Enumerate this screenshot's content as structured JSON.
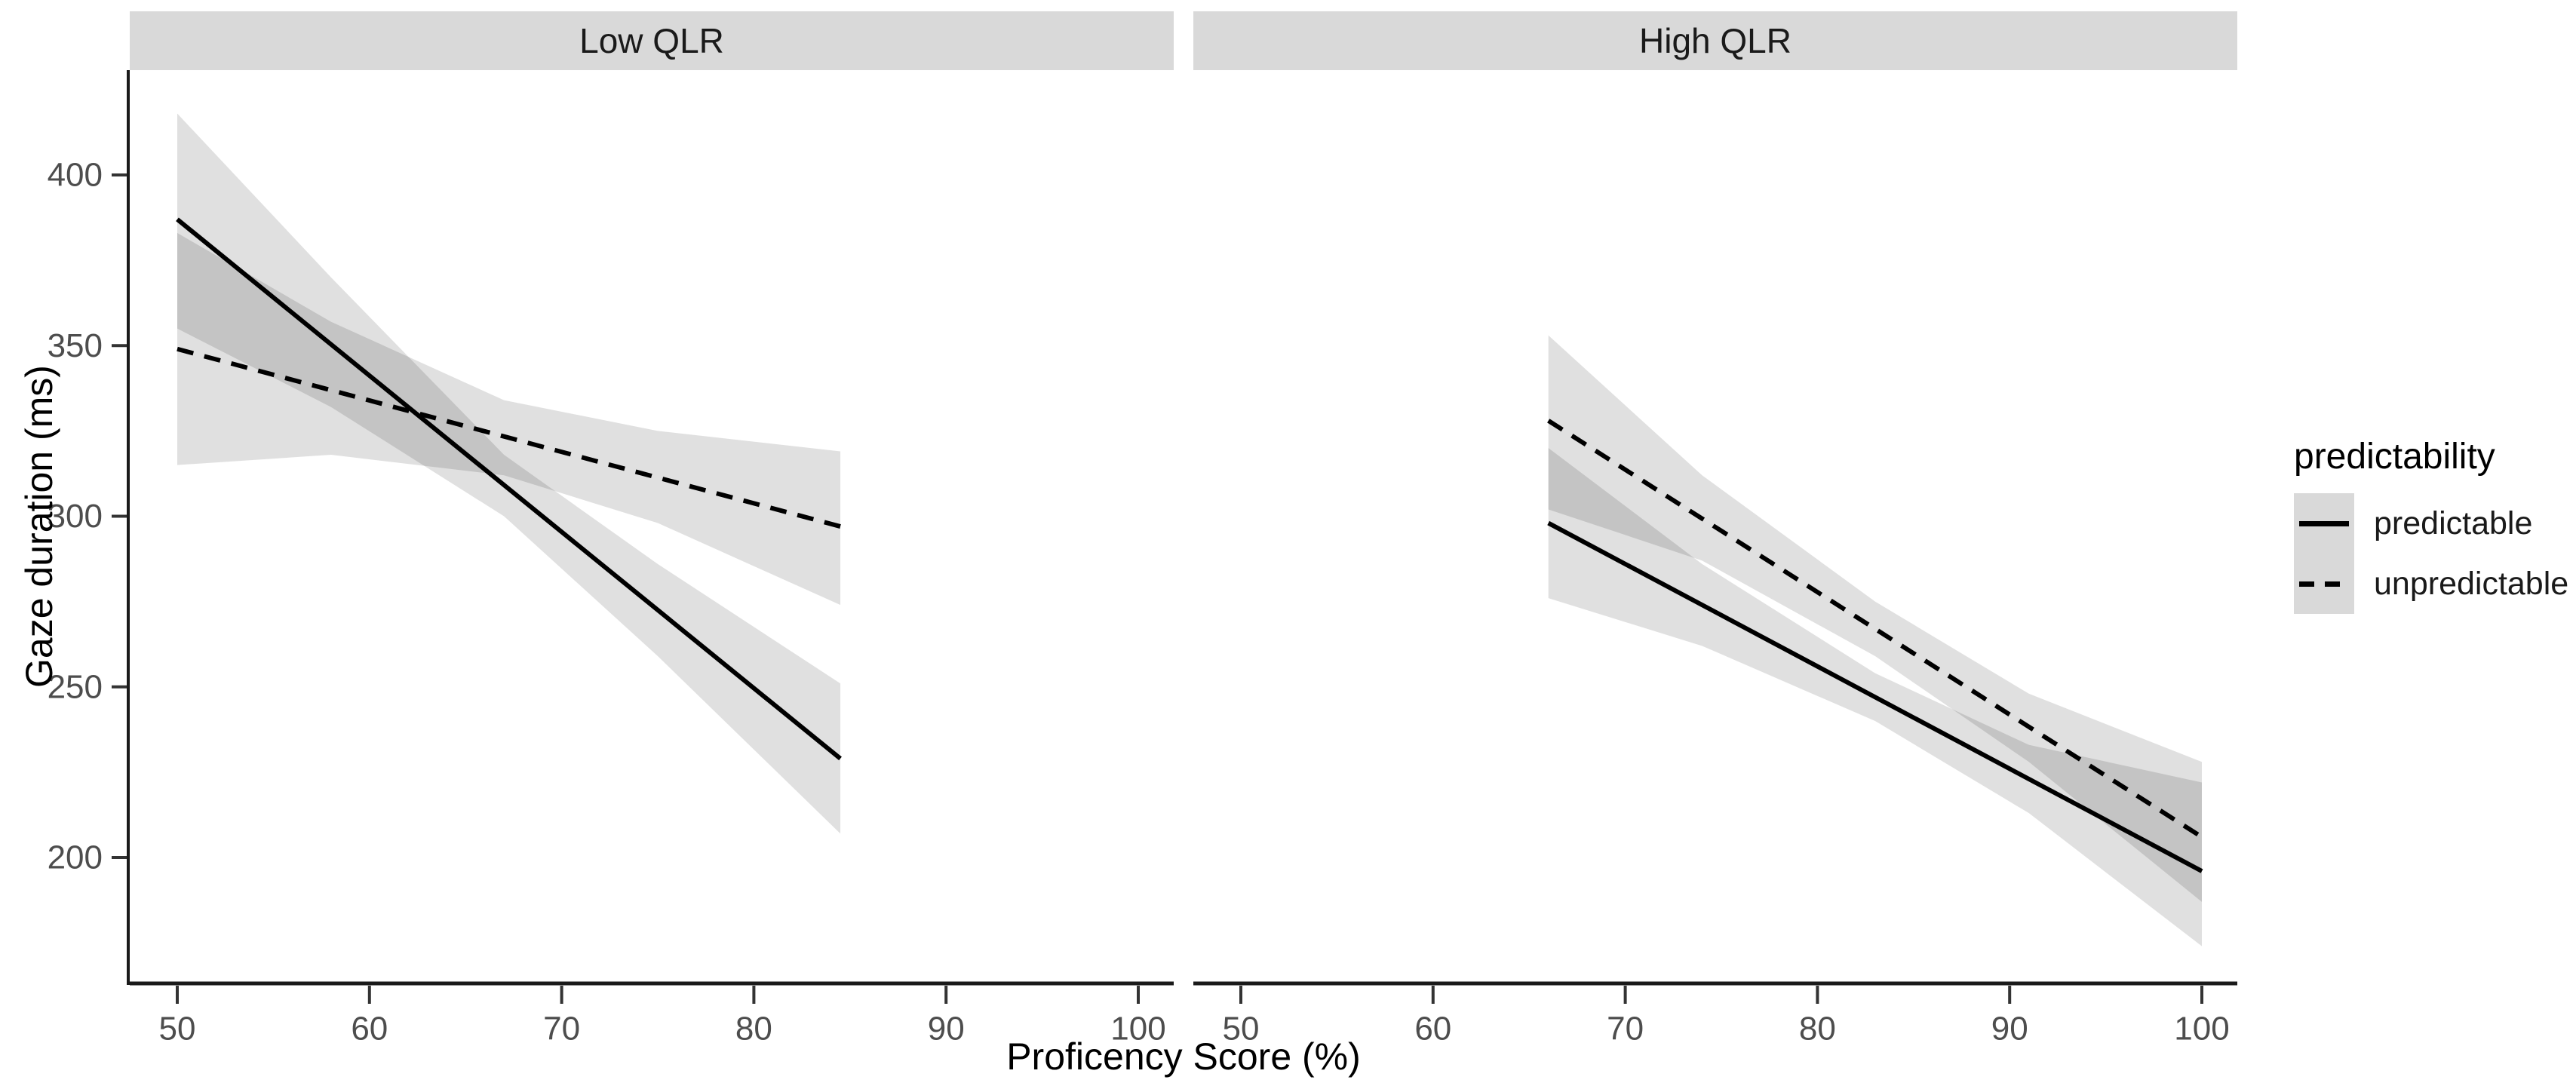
{
  "chart_data": {
    "type": "line",
    "title": "",
    "xlabel": "Proficency Score (%)",
    "ylabel": "Gaze duration (ms)",
    "x_ticks": [
      50,
      60,
      70,
      80,
      90,
      100
    ],
    "y_ticks": [
      200,
      250,
      300,
      350,
      400
    ],
    "x_range": [
      47.5,
      101.8
    ],
    "y_range": [
      163,
      431
    ],
    "grid": false,
    "legend": {
      "title": "predictability",
      "position": "right",
      "entries": [
        {
          "label": "predictable",
          "linetype": "solid"
        },
        {
          "label": "unpredictable",
          "linetype": "dashed"
        }
      ]
    },
    "facets": [
      {
        "label": "Low QLR",
        "series": [
          {
            "name": "predictable",
            "linetype": "solid",
            "x": [
              50,
              84.5
            ],
            "y": [
              387,
              229
            ],
            "ci": {
              "x": [
                50,
                58,
                67,
                75,
                84.5
              ],
              "lower": [
                355,
                332,
                300,
                259,
                207
              ],
              "upper": [
                418,
                370,
                318,
                286,
                251
              ]
            }
          },
          {
            "name": "unpredictable",
            "linetype": "dashed",
            "x": [
              50,
              84.5
            ],
            "y": [
              349,
              297
            ],
            "ci": {
              "x": [
                50,
                58,
                67,
                75,
                84.5
              ],
              "lower": [
                315,
                318,
                312,
                298,
                274
              ],
              "upper": [
                383,
                357,
                334,
                325,
                319
              ]
            }
          }
        ]
      },
      {
        "label": "High QLR",
        "series": [
          {
            "name": "predictable",
            "linetype": "solid",
            "x": [
              66,
              100
            ],
            "y": [
              298,
              196
            ],
            "ci": {
              "x": [
                66,
                74,
                83,
                91,
                100
              ],
              "lower": [
                276,
                262,
                240,
                213,
                174
              ],
              "upper": [
                320,
                286,
                254,
                233,
                222
              ]
            }
          },
          {
            "name": "unpredictable",
            "linetype": "dashed",
            "x": [
              66,
              100
            ],
            "y": [
              328,
              206
            ],
            "ci": {
              "x": [
                66,
                74,
                83,
                91,
                100
              ],
              "lower": [
                302,
                287,
                259,
                228,
                187
              ],
              "upper": [
                353,
                312,
                275,
                248,
                228
              ]
            }
          }
        ]
      }
    ]
  },
  "style": {
    "strip_bg": "#d9d9d9",
    "ribbon_fill": "rgba(0,0,0,0.12)",
    "line_color": "#000000",
    "axis_color": "#1a1a1a",
    "tick_color": "#333333",
    "tick_label_color": "#4d4d4d",
    "text_color": "#000000",
    "legend_key_bg": "#d9d9d9"
  }
}
